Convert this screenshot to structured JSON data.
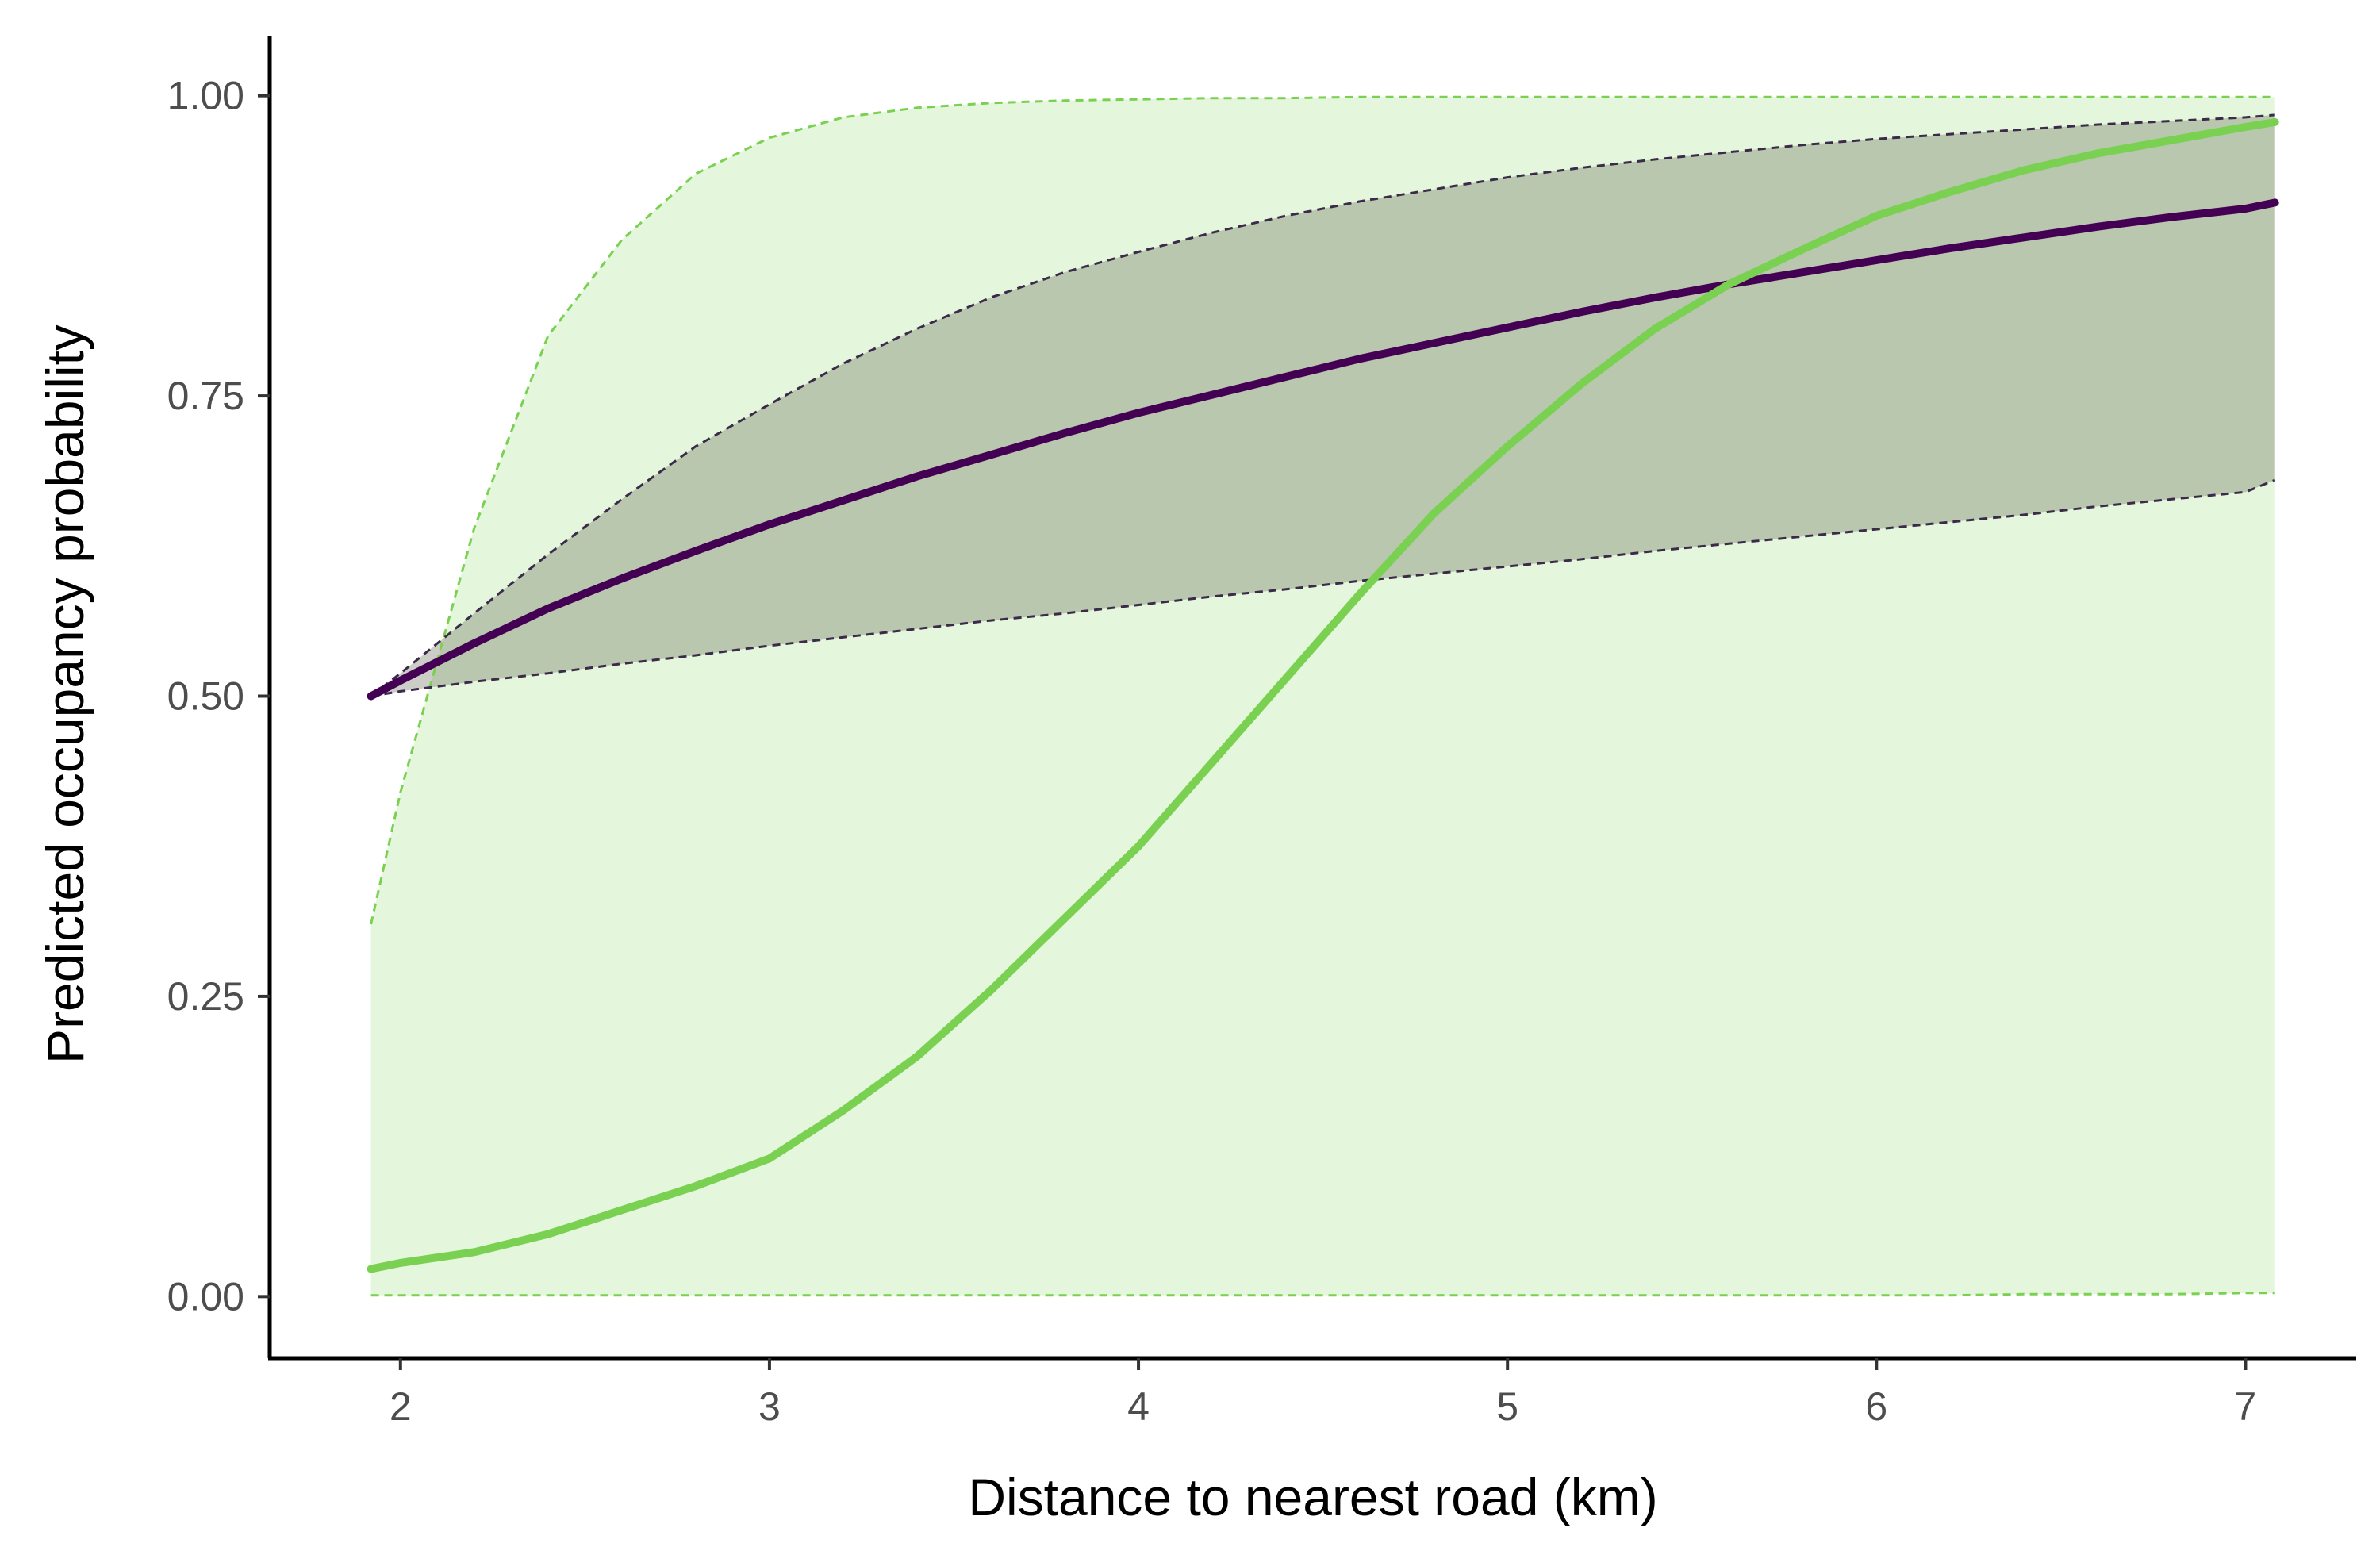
{
  "chart_data": {
    "type": "line",
    "title": "",
    "xlabel": "Distance to nearest road (km)",
    "ylabel": "Predicted occupancy probability",
    "xlim": [
      1.65,
      7.3
    ],
    "ylim": [
      -0.05,
      1.05
    ],
    "x_ticks": [
      2,
      3,
      4,
      5,
      6,
      7
    ],
    "x_tick_labels": [
      "2",
      "3",
      "4",
      "5",
      "6",
      "7"
    ],
    "y_ticks": [
      0,
      0.25,
      0.5,
      0.75,
      1
    ],
    "y_tick_labels": [
      "0.00",
      "0.25",
      "0.50",
      "0.75",
      "1.00"
    ],
    "grid": false,
    "legend": "none",
    "x": [
      1.92,
      2.0,
      2.2,
      2.4,
      2.6,
      2.8,
      3.0,
      3.2,
      3.4,
      3.6,
      3.8,
      4.0,
      4.2,
      4.4,
      4.6,
      4.8,
      5.0,
      5.2,
      5.4,
      5.6,
      5.8,
      6.0,
      6.2,
      6.4,
      6.6,
      6.8,
      7.0,
      7.08
    ],
    "series": [
      {
        "color": "#440154",
        "band_color": "#5a5a48",
        "values": [
          0.5,
          0.513,
          0.544,
          0.573,
          0.598,
          0.621,
          0.643,
          0.663,
          0.683,
          0.701,
          0.719,
          0.736,
          0.751,
          0.766,
          0.781,
          0.794,
          0.807,
          0.82,
          0.832,
          0.843,
          0.853,
          0.863,
          0.873,
          0.882,
          0.891,
          0.899,
          0.906,
          0.911
        ],
        "lower": [
          0.5,
          0.504,
          0.512,
          0.519,
          0.527,
          0.534,
          0.542,
          0.549,
          0.556,
          0.563,
          0.569,
          0.576,
          0.583,
          0.589,
          0.596,
          0.602,
          0.608,
          0.614,
          0.621,
          0.627,
          0.633,
          0.639,
          0.645,
          0.651,
          0.658,
          0.664,
          0.67,
          0.68
        ],
        "upper": [
          0.5,
          0.519,
          0.569,
          0.618,
          0.664,
          0.708,
          0.743,
          0.777,
          0.806,
          0.832,
          0.853,
          0.87,
          0.886,
          0.9,
          0.912,
          0.922,
          0.932,
          0.94,
          0.947,
          0.953,
          0.959,
          0.964,
          0.968,
          0.972,
          0.976,
          0.979,
          0.982,
          0.984
        ]
      },
      {
        "color": "#7ad151",
        "band_color": "#7ad151",
        "values": [
          0.023,
          0.028,
          0.037,
          0.052,
          0.072,
          0.092,
          0.115,
          0.155,
          0.2,
          0.255,
          0.315,
          0.375,
          0.445,
          0.515,
          0.585,
          0.652,
          0.708,
          0.76,
          0.806,
          0.843,
          0.872,
          0.9,
          0.92,
          0.938,
          0.952,
          0.963,
          0.974,
          0.978
        ],
        "lower": [
          0.001,
          0.001,
          0.001,
          0.001,
          0.001,
          0.001,
          0.001,
          0.001,
          0.001,
          0.001,
          0.001,
          0.001,
          0.001,
          0.001,
          0.001,
          0.001,
          0.001,
          0.001,
          0.001,
          0.001,
          0.001,
          0.001,
          0.001,
          0.002,
          0.002,
          0.002,
          0.003,
          0.003
        ],
        "upper": [
          0.31,
          0.42,
          0.64,
          0.8,
          0.88,
          0.935,
          0.965,
          0.982,
          0.99,
          0.994,
          0.996,
          0.997,
          0.998,
          0.998,
          0.999,
          0.999,
          0.999,
          0.999,
          0.999,
          0.999,
          0.999,
          0.999,
          0.999,
          0.999,
          0.999,
          0.999,
          0.999,
          0.999
        ]
      }
    ]
  }
}
